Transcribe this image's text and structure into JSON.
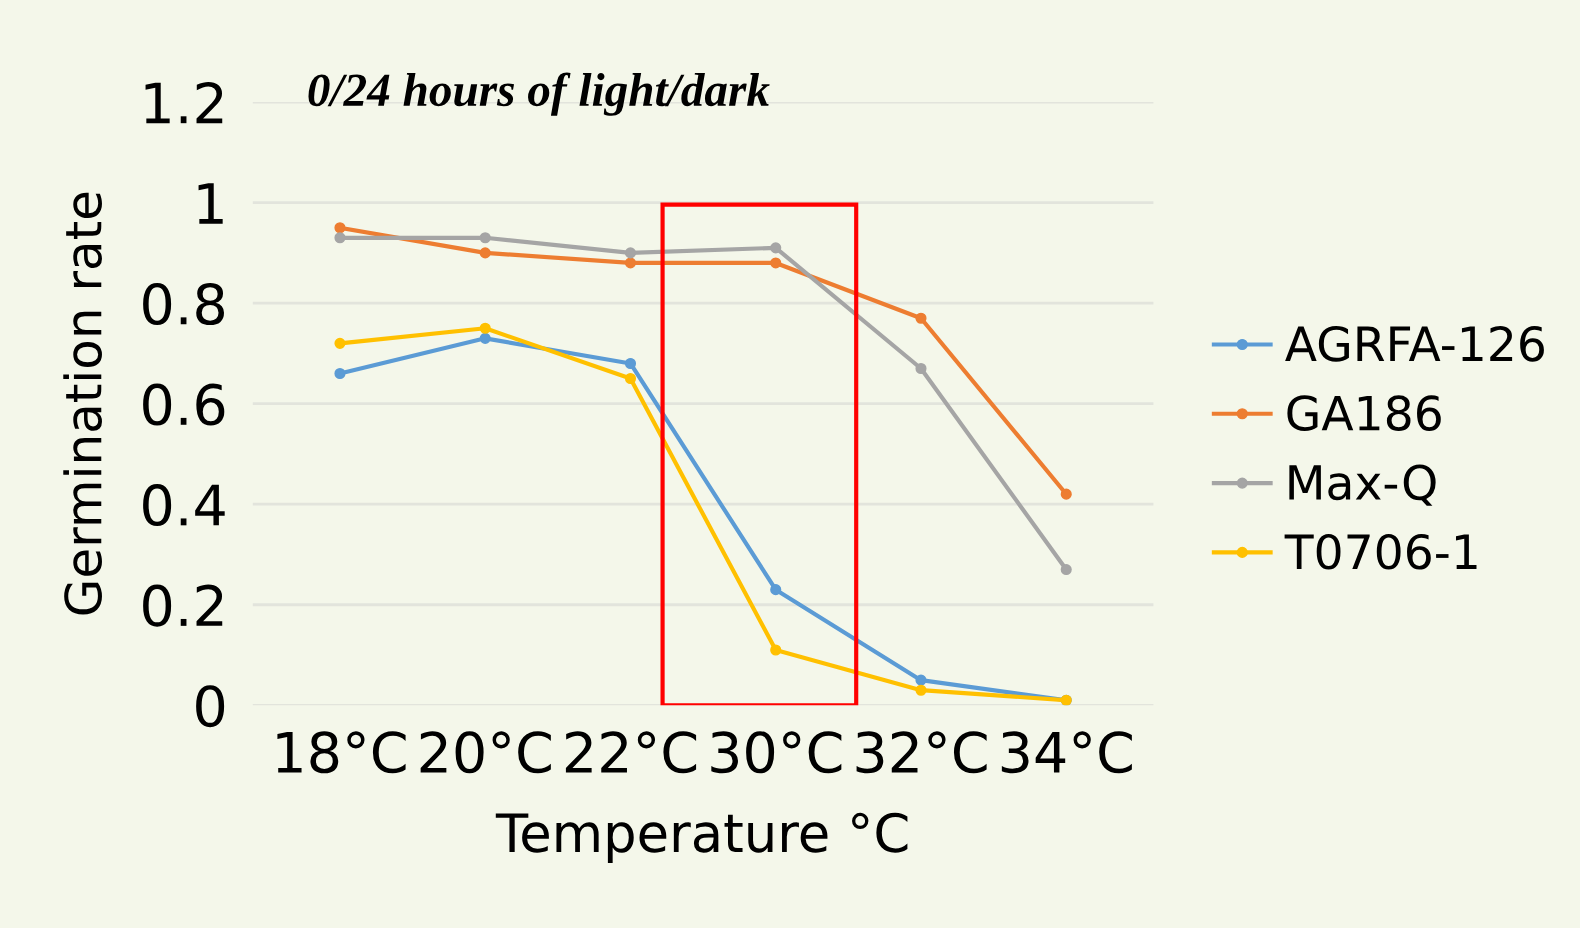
{
  "chart_data": {
    "type": "line",
    "title": "0/24 hours of light/dark",
    "xlabel": "Temperature °C",
    "ylabel": "Germination rate",
    "categories": [
      "18°C",
      "20°C",
      "22°C",
      "30°C",
      "32°C",
      "34°C"
    ],
    "series": [
      {
        "name": "AGRFA-126",
        "color": "#5b9bd5",
        "values": [
          0.66,
          0.73,
          0.68,
          0.23,
          0.05,
          0.01
        ]
      },
      {
        "name": "GA186",
        "color": "#ed7d31",
        "values": [
          0.95,
          0.9,
          0.88,
          0.88,
          0.77,
          0.42
        ]
      },
      {
        "name": "Max-Q",
        "color": "#a5a5a5",
        "values": [
          0.93,
          0.93,
          0.9,
          0.91,
          0.67,
          0.27
        ]
      },
      {
        "name": "T0706-1",
        "color": "#ffc000",
        "values": [
          0.72,
          0.75,
          0.65,
          0.11,
          0.03,
          0.01
        ]
      }
    ],
    "ylim": [
      0,
      1.2
    ],
    "yticks": [
      0,
      0.2,
      0.4,
      0.6,
      0.8,
      1,
      1.2
    ],
    "grid": "y",
    "legend": "right",
    "marker": "circle",
    "line_style": "solid"
  }
}
